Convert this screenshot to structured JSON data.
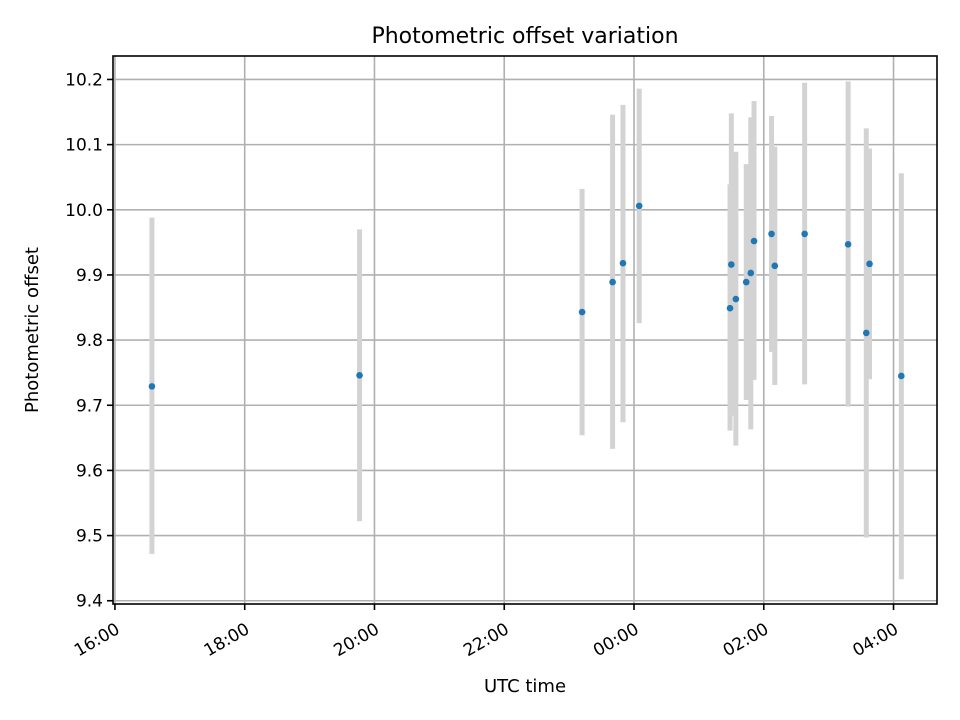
{
  "chart_data": {
    "type": "scatter",
    "title": "Photometric offset variation",
    "xlabel": "UTC time",
    "ylabel": "Photometric offset",
    "x_unit": "hours since 16:00 UTC (x axis printed as clock times)",
    "xlim": [
      -0.03,
      12.67
    ],
    "ylim": [
      9.395,
      10.236
    ],
    "xticks": [
      0,
      2,
      4,
      6,
      8,
      10,
      12
    ],
    "xtick_labels": [
      "16:00",
      "18:00",
      "20:00",
      "22:00",
      "00:00",
      "02:00",
      "04:00"
    ],
    "yticks": [
      9.4,
      9.5,
      9.6,
      9.7,
      9.8,
      9.9,
      10.0,
      10.1,
      10.2
    ],
    "ytick_labels": [
      "9.4",
      "9.5",
      "9.6",
      "9.7",
      "9.8",
      "9.9",
      "10.0",
      "10.1",
      "10.2"
    ],
    "grid": true,
    "marker_color": "#1f77b4",
    "errorbar_color": "#d3d3d3",
    "points": [
      {
        "x": 0.57,
        "y": 9.729,
        "low": 9.472,
        "high": 9.988
      },
      {
        "x": 3.77,
        "y": 9.746,
        "low": 9.522,
        "high": 9.97
      },
      {
        "x": 7.2,
        "y": 9.843,
        "low": 9.654,
        "high": 10.032
      },
      {
        "x": 7.67,
        "y": 9.889,
        "low": 9.633,
        "high": 10.146
      },
      {
        "x": 7.83,
        "y": 9.918,
        "low": 9.674,
        "high": 10.161
      },
      {
        "x": 8.08,
        "y": 10.006,
        "low": 9.826,
        "high": 10.186
      },
      {
        "x": 9.48,
        "y": 9.849,
        "low": 9.661,
        "high": 10.039
      },
      {
        "x": 9.5,
        "y": 9.916,
        "low": 9.684,
        "high": 10.148
      },
      {
        "x": 9.57,
        "y": 9.863,
        "low": 9.638,
        "high": 10.089
      },
      {
        "x": 9.73,
        "y": 9.889,
        "low": 9.708,
        "high": 10.07
      },
      {
        "x": 9.8,
        "y": 9.903,
        "low": 9.663,
        "high": 10.142
      },
      {
        "x": 9.85,
        "y": 9.952,
        "low": 9.739,
        "high": 10.167
      },
      {
        "x": 10.12,
        "y": 9.963,
        "low": 9.782,
        "high": 10.144
      },
      {
        "x": 10.17,
        "y": 9.914,
        "low": 9.731,
        "high": 10.097
      },
      {
        "x": 10.63,
        "y": 9.963,
        "low": 9.732,
        "high": 10.195
      },
      {
        "x": 11.3,
        "y": 9.947,
        "low": 9.698,
        "high": 10.197
      },
      {
        "x": 11.58,
        "y": 9.811,
        "low": 9.497,
        "high": 10.125
      },
      {
        "x": 11.63,
        "y": 9.917,
        "low": 9.74,
        "high": 10.094
      },
      {
        "x": 12.12,
        "y": 9.745,
        "low": 9.433,
        "high": 10.056
      }
    ]
  }
}
